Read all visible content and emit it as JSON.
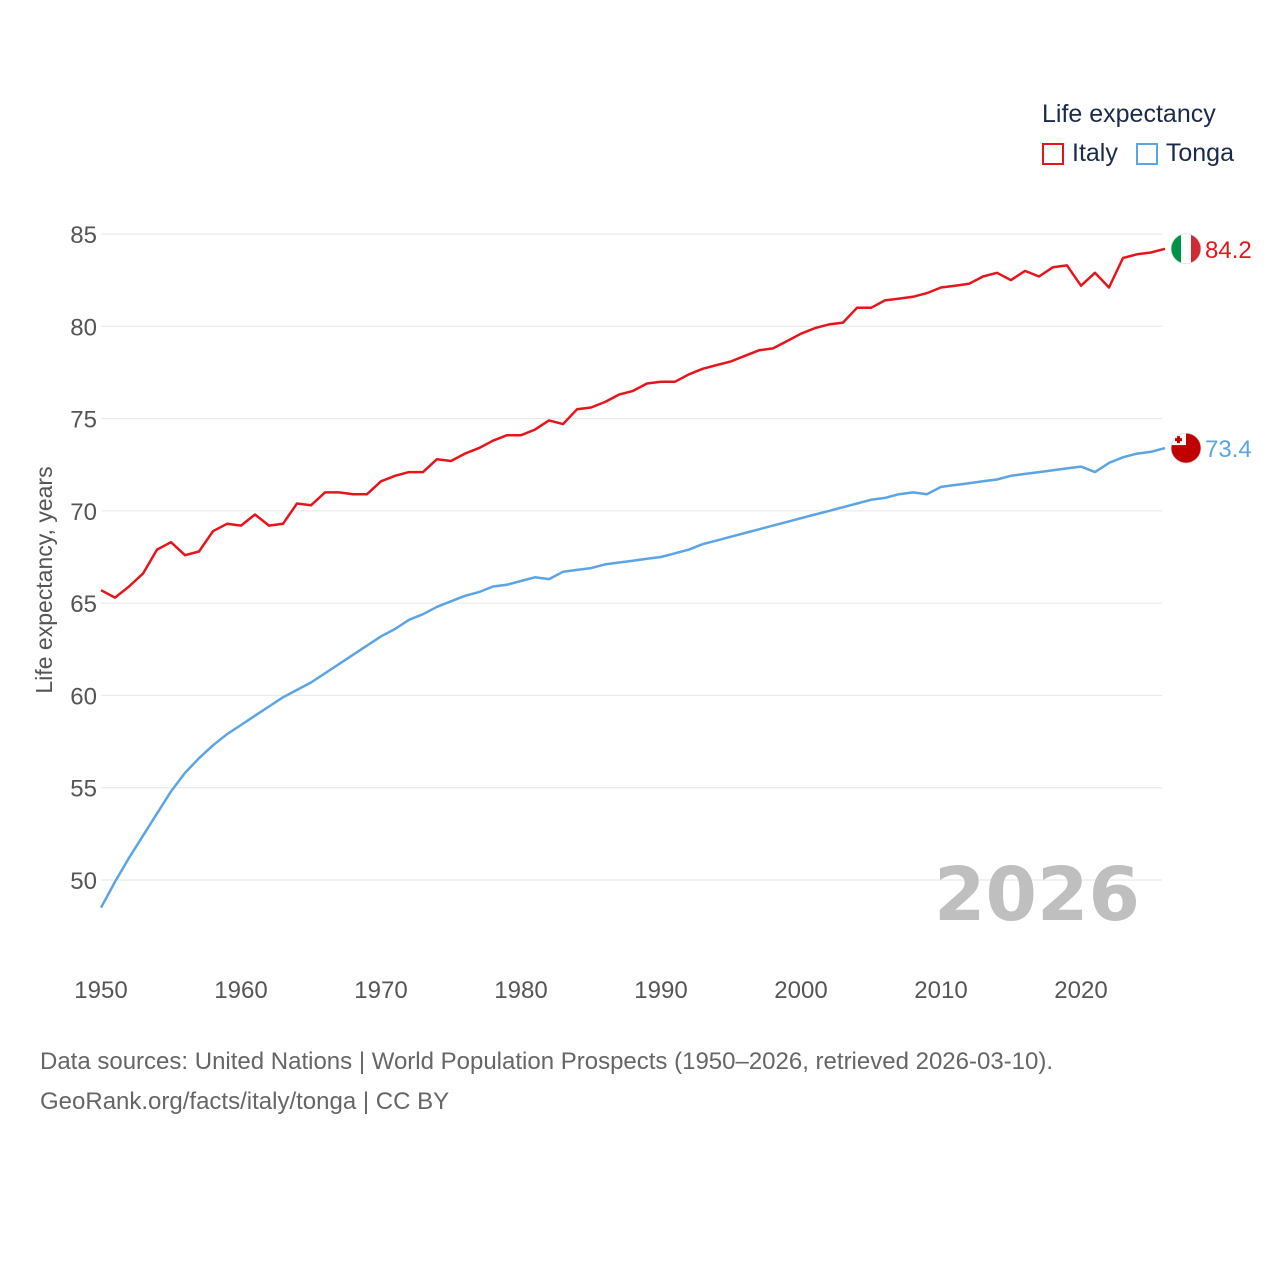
{
  "chart_data": {
    "type": "line",
    "title": "Life expectancy",
    "xlabel": "",
    "ylabel": "Life expectancy, years",
    "xlim": [
      1950,
      2026
    ],
    "ylim": [
      48,
      86
    ],
    "xticks": [
      1950,
      1960,
      1970,
      1980,
      1990,
      2000,
      2010,
      2020
    ],
    "yticks": [
      50,
      55,
      60,
      65,
      70,
      75,
      80,
      85
    ],
    "grid": true,
    "legend_position": "top-right",
    "year_watermark": "2026",
    "x": [
      1950,
      1951,
      1952,
      1953,
      1954,
      1955,
      1956,
      1957,
      1958,
      1959,
      1960,
      1961,
      1962,
      1963,
      1964,
      1965,
      1966,
      1967,
      1968,
      1969,
      1970,
      1971,
      1972,
      1973,
      1974,
      1975,
      1976,
      1977,
      1978,
      1979,
      1980,
      1981,
      1982,
      1983,
      1984,
      1985,
      1986,
      1987,
      1988,
      1989,
      1990,
      1991,
      1992,
      1993,
      1994,
      1995,
      1996,
      1997,
      1998,
      1999,
      2000,
      2001,
      2002,
      2003,
      2004,
      2005,
      2006,
      2007,
      2008,
      2009,
      2010,
      2011,
      2012,
      2013,
      2014,
      2015,
      2016,
      2017,
      2018,
      2019,
      2020,
      2021,
      2022,
      2023,
      2024,
      2025,
      2026
    ],
    "series": [
      {
        "name": "Italy",
        "color": "#e8141c",
        "end_label": "84.2",
        "flag": "italy-flag-icon",
        "values": [
          65.7,
          65.3,
          65.9,
          66.6,
          67.9,
          68.3,
          67.6,
          67.8,
          68.9,
          69.3,
          69.2,
          69.8,
          69.2,
          69.3,
          70.4,
          70.3,
          71.0,
          71.0,
          70.9,
          70.9,
          71.6,
          71.9,
          72.1,
          72.1,
          72.8,
          72.7,
          73.1,
          73.4,
          73.8,
          74.1,
          74.1,
          74.4,
          74.9,
          74.7,
          75.5,
          75.6,
          75.9,
          76.3,
          76.5,
          76.9,
          77.0,
          77.0,
          77.4,
          77.7,
          77.9,
          78.1,
          78.4,
          78.7,
          78.8,
          79.2,
          79.6,
          79.9,
          80.1,
          80.2,
          81.0,
          81.0,
          81.4,
          81.5,
          81.6,
          81.8,
          82.1,
          82.2,
          82.3,
          82.7,
          82.9,
          82.5,
          83.0,
          82.7,
          83.2,
          83.3,
          82.2,
          82.9,
          82.1,
          83.7,
          83.9,
          84.0,
          84.2
        ]
      },
      {
        "name": "Tonga",
        "color": "#5ba4e5",
        "end_label": "73.4",
        "flag": "tonga-flag-icon",
        "values": [
          48.5,
          49.9,
          51.2,
          52.4,
          53.6,
          54.8,
          55.8,
          56.6,
          57.3,
          57.9,
          58.4,
          58.9,
          59.4,
          59.9,
          60.3,
          60.7,
          61.2,
          61.7,
          62.2,
          62.7,
          63.2,
          63.6,
          64.1,
          64.4,
          64.8,
          65.1,
          65.4,
          65.6,
          65.9,
          66.0,
          66.2,
          66.4,
          66.3,
          66.7,
          66.8,
          66.9,
          67.1,
          67.2,
          67.3,
          67.4,
          67.5,
          67.7,
          67.9,
          68.2,
          68.4,
          68.6,
          68.8,
          69.0,
          69.2,
          69.4,
          69.6,
          69.8,
          70.0,
          70.2,
          70.4,
          70.6,
          70.7,
          70.9,
          71.0,
          70.9,
          71.3,
          71.4,
          71.5,
          71.6,
          71.7,
          71.9,
          72.0,
          72.1,
          72.2,
          72.3,
          72.4,
          72.1,
          72.6,
          72.9,
          73.1,
          73.2,
          73.4
        ]
      }
    ]
  },
  "footer": {
    "line1": "Data sources: United Nations | World Population Prospects (1950–2026, retrieved 2026-03-10).",
    "line2": "GeoRank.org/facts/italy/tonga | CC BY"
  }
}
